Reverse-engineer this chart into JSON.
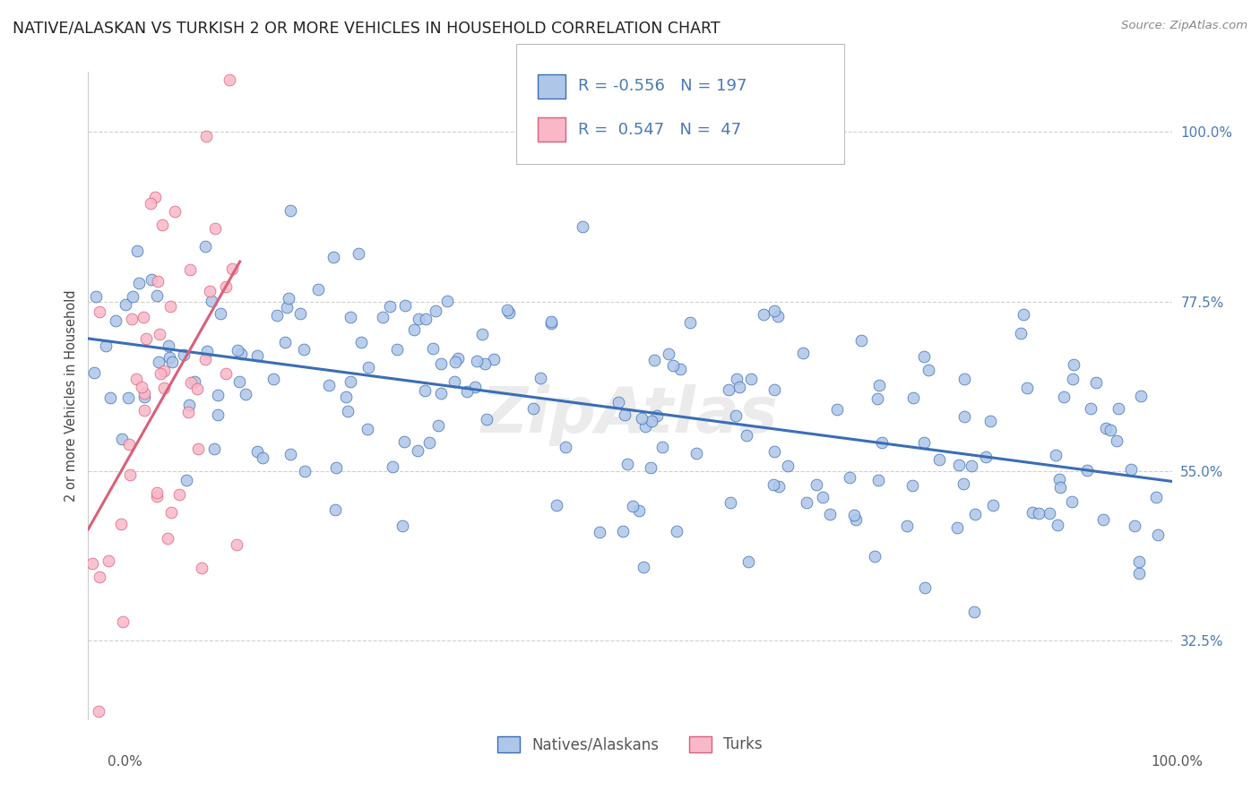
{
  "title": "NATIVE/ALASKAN VS TURKISH 2 OR MORE VEHICLES IN HOUSEHOLD CORRELATION CHART",
  "source": "Source: ZipAtlas.com",
  "ylabel": "2 or more Vehicles in Household",
  "yticks": [
    32.5,
    55.0,
    77.5,
    100.0
  ],
  "ytick_labels": [
    "32.5%",
    "55.0%",
    "77.5%",
    "100.0%"
  ],
  "xlim": [
    0,
    100
  ],
  "ylim": [
    22,
    108
  ],
  "blue_R": -0.556,
  "blue_N": 197,
  "pink_R": 0.547,
  "pink_N": 47,
  "blue_color": "#aec6e8",
  "pink_color": "#f9b8c8",
  "blue_line_color": "#3a6eb5",
  "pink_line_color": "#d9607a",
  "legend_label_blue": "Natives/Alaskans",
  "legend_label_pink": "Turks",
  "watermark": "ZipAtlas",
  "blue_seed": 42,
  "pink_seed": 7,
  "background_color": "#ffffff",
  "grid_color": "#d0d0d0",
  "axis_label_color": "#4a7ab5",
  "title_color": "#222222",
  "source_color": "#888888"
}
